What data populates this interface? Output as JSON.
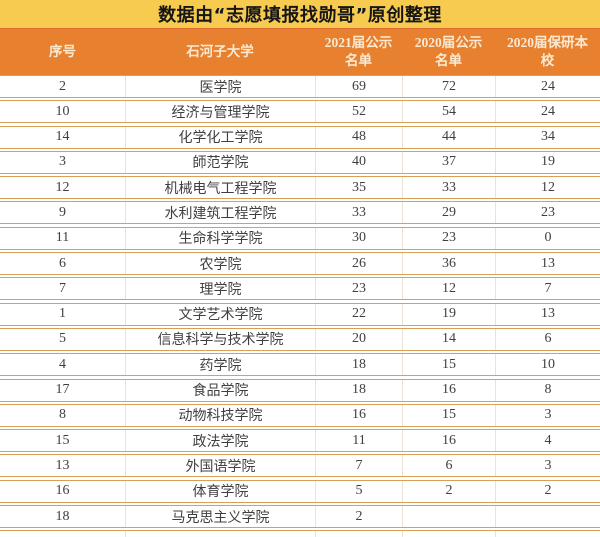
{
  "title_bar": {
    "text": "数据由“志愿填报找勋哥”原创整理"
  },
  "table": {
    "header_labels": [
      "序号",
      "石河子大学",
      "2021届公示\n名单",
      "2020届公示\n名单",
      "2020届保研本\n校"
    ]
  },
  "chart_data": {
    "type": "table",
    "title": "数据由“志愿填报找勋哥”原创整理",
    "university": "石河子大学",
    "columns": [
      "序号",
      "石河子大学",
      "2021届公示名单",
      "2020届公示名单",
      "2020届保研本校"
    ],
    "rows": [
      [
        2,
        "医学院",
        69,
        72,
        24
      ],
      [
        10,
        "经济与管理学院",
        52,
        54,
        24
      ],
      [
        14,
        "化学化工学院",
        48,
        44,
        34
      ],
      [
        3,
        "師范学院",
        40,
        37,
        19
      ],
      [
        12,
        "机械电气工程学院",
        35,
        33,
        12
      ],
      [
        9,
        "水利建筑工程学院",
        33,
        29,
        23
      ],
      [
        11,
        "生命科学学院",
        30,
        23,
        0
      ],
      [
        6,
        "农学院",
        26,
        36,
        13
      ],
      [
        7,
        "理学院",
        23,
        12,
        7
      ],
      [
        1,
        "文学艺术学院",
        22,
        19,
        13
      ],
      [
        5,
        "信息科学与技术学院",
        20,
        14,
        6
      ],
      [
        4,
        "药学院",
        18,
        15,
        10
      ],
      [
        17,
        "食品学院",
        18,
        16,
        8
      ],
      [
        8,
        "动物科技学院",
        16,
        15,
        3
      ],
      [
        15,
        "政法学院",
        11,
        16,
        4
      ],
      [
        13,
        "外国语学院",
        7,
        6,
        3
      ],
      [
        16,
        "体育学院",
        5,
        2,
        2
      ],
      [
        18,
        "马克思主义学院",
        2,
        "",
        ""
      ]
    ]
  },
  "colors": {
    "title_background": "#F6CB50",
    "header_background": "#E8812F",
    "header_text": "#FBE9D2",
    "row_border": "#D8A055",
    "cell_divider": "#ECE2D2",
    "body_text": "#3F3F3F"
  }
}
